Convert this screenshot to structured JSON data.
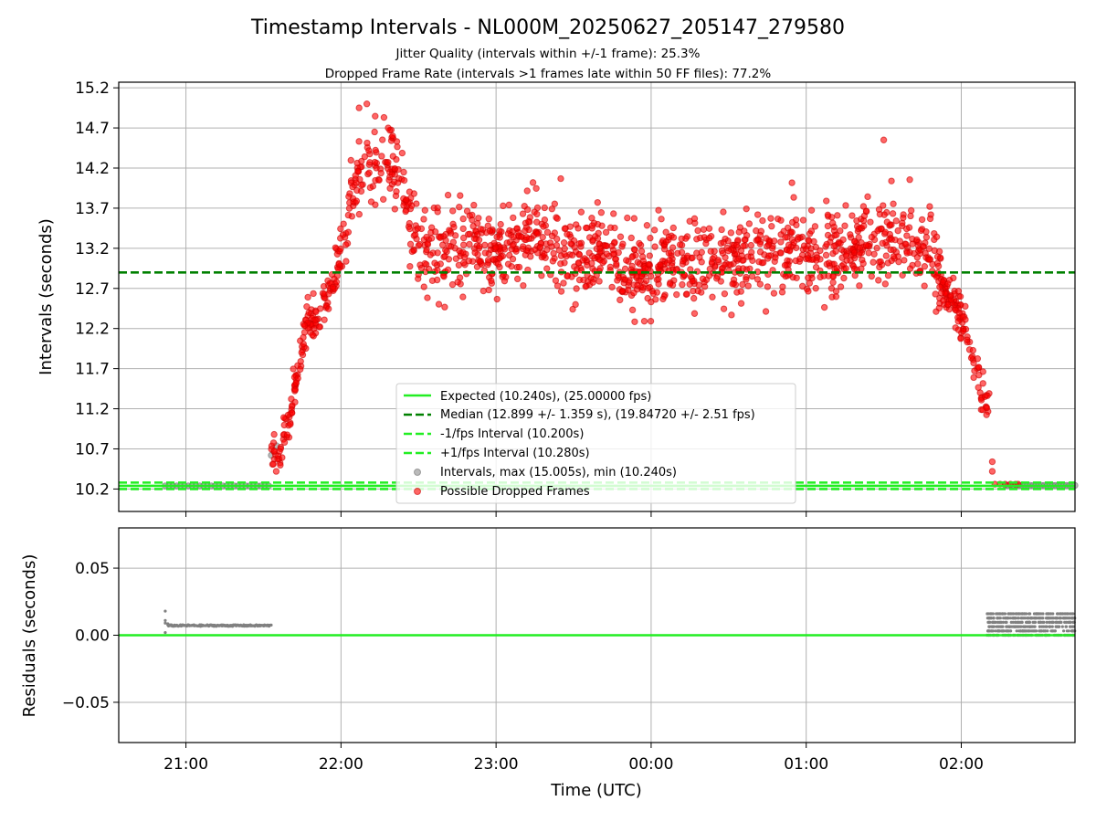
{
  "title": "Timestamp Intervals - NL000M_20250627_205147_279580",
  "subtitle1": "Jitter Quality (intervals within +/-1 frame): 25.3%",
  "subtitle2": "Dropped Frame Rate (intervals >1 frames late within 50 FF files): 77.2%",
  "chart_data": [
    {
      "type": "scatter",
      "ylabel": "Intervals (seconds)",
      "xlabel": "",
      "xlim": [
        "20:34",
        "02:44"
      ],
      "ylim": [
        9.92,
        15.27
      ],
      "yticks": [
        "10.2",
        "10.7",
        "11.2",
        "11.7",
        "12.2",
        "12.7",
        "13.2",
        "13.7",
        "14.2",
        "14.7",
        "15.2"
      ],
      "grid": true,
      "legend_placement": "lower center",
      "reference_lines": [
        {
          "name": "Expected (10.240s), (25.00000 fps)",
          "y": 10.24,
          "style": "solid",
          "color": "#22ee22"
        },
        {
          "name": "Median (12.899 +/- 1.359 s), (19.84720 +/- 2.51 fps)",
          "y": 12.899,
          "style": "dashed",
          "color": "#008000"
        },
        {
          "name": "-1/fps Interval (10.200s)",
          "y": 10.2,
          "style": "dashed",
          "color": "#22ee22"
        },
        {
          "name": "+1/fps Interval (10.280s)",
          "y": 10.28,
          "style": "dashed",
          "color": "#22ee22"
        }
      ],
      "series": [
        {
          "name": "Intervals, max (15.005s), min (10.240s)",
          "color": "#8c8c8c",
          "points": [
            {
              "x": "20:52",
              "y": 10.24
            },
            {
              "x": "20:58",
              "y": 10.24
            },
            {
              "x": "21:04",
              "y": 10.24
            },
            {
              "x": "21:10",
              "y": 10.24
            },
            {
              "x": "21:16",
              "y": 10.24
            },
            {
              "x": "21:22",
              "y": 10.24
            },
            {
              "x": "21:28",
              "y": 10.24
            },
            {
              "x": "21:32",
              "y": 10.24
            },
            {
              "x": "21:33",
              "y": 10.62
            },
            {
              "x": "21:35",
              "y": 10.74
            },
            {
              "x": "02:20",
              "y": 10.25
            },
            {
              "x": "02:28",
              "y": 10.25
            },
            {
              "x": "02:36",
              "y": 10.25
            },
            {
              "x": "02:42",
              "y": 10.25
            }
          ]
        },
        {
          "name": "Possible Dropped Frames",
          "color": "#ff0000",
          "profile": [
            {
              "x": "21:33",
              "y": 10.6
            },
            {
              "x": "21:37",
              "y": 10.7
            },
            {
              "x": "21:40",
              "y": 11.0
            },
            {
              "x": "21:43",
              "y": 11.6
            },
            {
              "x": "21:46",
              "y": 12.2
            },
            {
              "x": "21:52",
              "y": 12.4
            },
            {
              "x": "21:55",
              "y": 12.6
            },
            {
              "x": "21:58",
              "y": 12.9
            },
            {
              "x": "22:02",
              "y": 13.5
            },
            {
              "x": "22:05",
              "y": 14.05
            },
            {
              "x": "22:10",
              "y": 14.25
            },
            {
              "x": "22:15",
              "y": 14.25
            },
            {
              "x": "22:20",
              "y": 14.2
            },
            {
              "x": "22:24",
              "y": 14.0
            },
            {
              "x": "22:30",
              "y": 13.25
            },
            {
              "x": "22:40",
              "y": 13.15
            },
            {
              "x": "22:50",
              "y": 13.2
            },
            {
              "x": "23:00",
              "y": 13.1
            },
            {
              "x": "23:10",
              "y": 13.25
            },
            {
              "x": "23:20",
              "y": 13.35
            },
            {
              "x": "23:30",
              "y": 13.05
            },
            {
              "x": "23:40",
              "y": 13.2
            },
            {
              "x": "23:50",
              "y": 12.95
            },
            {
              "x": "00:00",
              "y": 12.9
            },
            {
              "x": "00:10",
              "y": 13.05
            },
            {
              "x": "00:20",
              "y": 13.0
            },
            {
              "x": "00:30",
              "y": 13.1
            },
            {
              "x": "00:40",
              "y": 13.05
            },
            {
              "x": "00:50",
              "y": 13.2
            },
            {
              "x": "01:00",
              "y": 13.3
            },
            {
              "x": "01:10",
              "y": 13.1
            },
            {
              "x": "01:20",
              "y": 13.2
            },
            {
              "x": "01:30",
              "y": 13.25
            },
            {
              "x": "01:40",
              "y": 13.3
            },
            {
              "x": "01:45",
              "y": 13.2
            },
            {
              "x": "01:50",
              "y": 12.9
            },
            {
              "x": "01:55",
              "y": 12.6
            },
            {
              "x": "02:00",
              "y": 12.35
            },
            {
              "x": "02:04",
              "y": 11.8
            },
            {
              "x": "02:08",
              "y": 11.4
            },
            {
              "x": "02:11",
              "y": 11.2
            }
          ],
          "tail_points": [
            {
              "x": "02:12",
              "y": 10.54
            },
            {
              "x": "02:12",
              "y": 10.42
            },
            {
              "x": "02:13",
              "y": 10.26
            },
            {
              "x": "02:15",
              "y": 10.26
            },
            {
              "x": "02:17",
              "y": 10.26
            },
            {
              "x": "02:19",
              "y": 10.26
            },
            {
              "x": "02:21",
              "y": 10.26
            },
            {
              "x": "02:22",
              "y": 10.26
            }
          ]
        }
      ]
    },
    {
      "type": "scatter",
      "ylabel": "Residuals (seconds)",
      "xlabel": "Time (UTC)",
      "xlim": [
        "20:34",
        "02:44"
      ],
      "ylim": [
        -0.08,
        0.08
      ],
      "yticks": [
        "−0.05",
        "0.00",
        "0.05"
      ],
      "xticks": [
        "21:00",
        "22:00",
        "23:00",
        "00:00",
        "01:00",
        "02:00"
      ],
      "grid": true,
      "reference_lines": [
        {
          "name": "",
          "y": 0.0,
          "style": "solid",
          "color": "#22ee22"
        }
      ],
      "series": [
        {
          "name": "",
          "color": "#808080",
          "points": [
            {
              "x": "20:52",
              "y": 0.018
            },
            {
              "x": "20:52",
              "y": 0.01
            },
            {
              "x": "20:52",
              "y": 0.002
            },
            {
              "x": "20:53",
              "y": 0.008
            },
            {
              "x": "20:55",
              "y": 0.0072
            },
            {
              "x": "21:00",
              "y": 0.0072
            },
            {
              "x": "21:10",
              "y": 0.0072
            },
            {
              "x": "21:20",
              "y": 0.0072
            },
            {
              "x": "21:33",
              "y": 0.0072
            },
            {
              "x": "02:10",
              "y": 0.0
            },
            {
              "x": "02:20",
              "y": 0.016
            },
            {
              "x": "02:30",
              "y": 0.008
            },
            {
              "x": "02:40",
              "y": 0.004
            }
          ]
        }
      ]
    }
  ]
}
